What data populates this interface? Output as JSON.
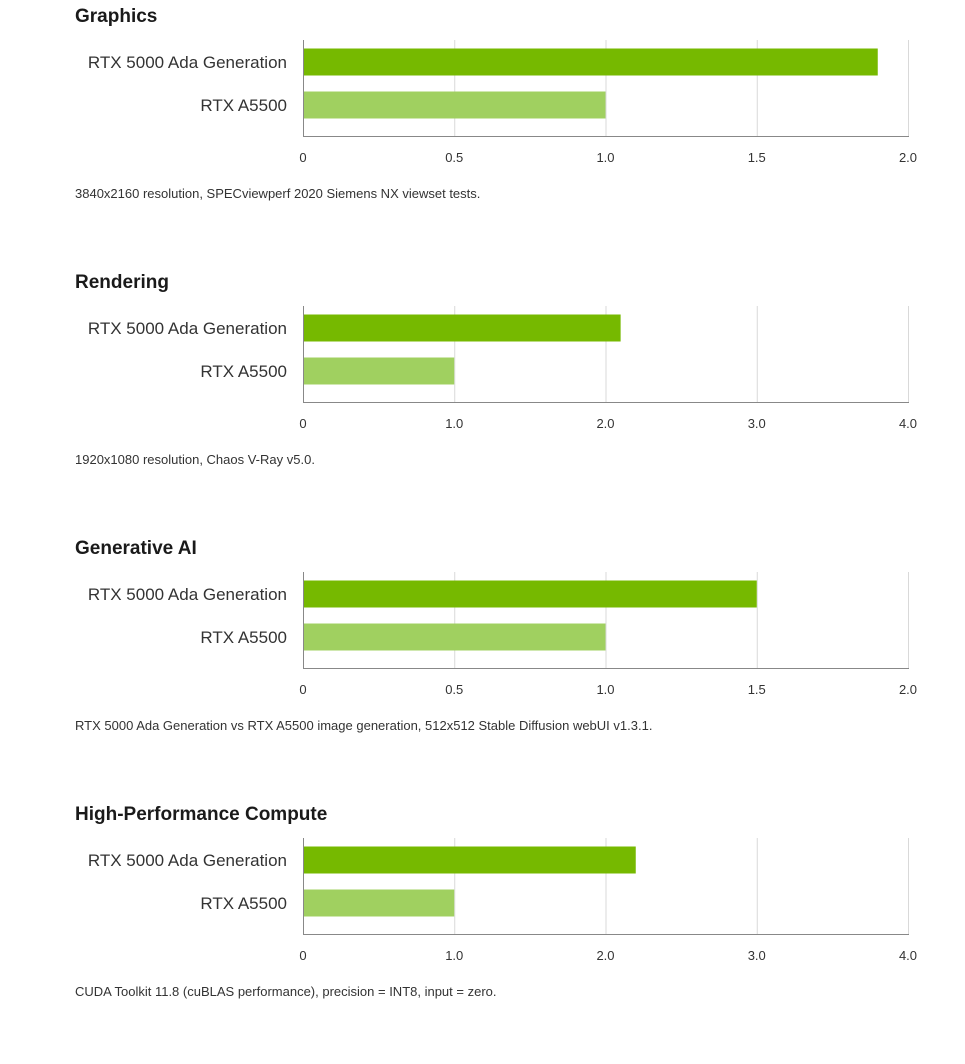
{
  "colors": {
    "primary_bar": "#76b900",
    "secondary_bar": "#a0d060",
    "grid": "#d9d9d9",
    "axis": "#888888",
    "text": "#333333"
  },
  "chart_data": [
    {
      "type": "bar",
      "orientation": "horizontal",
      "title": "Graphics",
      "categories": [
        "RTX 5000 Ada Generation",
        "RTX A5500"
      ],
      "values": [
        1.9,
        1.0
      ],
      "xlim": [
        0,
        2.0
      ],
      "ticks": [
        "0",
        "0.5",
        "1.0",
        "1.5",
        "2.0"
      ],
      "tick_values": [
        0,
        0.5,
        1.0,
        1.5,
        2.0
      ],
      "grid": true,
      "footnote": "3840x2160 resolution, SPECviewperf 2020 Siemens NX viewset tests."
    },
    {
      "type": "bar",
      "orientation": "horizontal",
      "title": "Rendering",
      "categories": [
        "RTX 5000 Ada Generation",
        "RTX A5500"
      ],
      "values": [
        2.1,
        1.0
      ],
      "xlim": [
        0,
        4.0
      ],
      "ticks": [
        "0",
        "1.0",
        "2.0",
        "3.0",
        "4.0"
      ],
      "tick_values": [
        0,
        1.0,
        2.0,
        3.0,
        4.0
      ],
      "grid": true,
      "footnote": "1920x1080 resolution, Chaos V-Ray v5.0."
    },
    {
      "type": "bar",
      "orientation": "horizontal",
      "title": "Generative AI",
      "categories": [
        "RTX 5000 Ada Generation",
        "RTX A5500"
      ],
      "values": [
        1.5,
        1.0
      ],
      "xlim": [
        0,
        2.0
      ],
      "ticks": [
        "0",
        "0.5",
        "1.0",
        "1.5",
        "2.0"
      ],
      "tick_values": [
        0,
        0.5,
        1.0,
        1.5,
        2.0
      ],
      "grid": true,
      "footnote": "RTX 5000 Ada Generation vs RTX A5500 image generation, 512x512 Stable Diffusion webUI v1.3.1."
    },
    {
      "type": "bar",
      "orientation": "horizontal",
      "title": "High-Performance Compute",
      "categories": [
        "RTX 5000 Ada Generation",
        "RTX A5500"
      ],
      "values": [
        2.2,
        1.0
      ],
      "xlim": [
        0,
        4.0
      ],
      "ticks": [
        "0",
        "1.0",
        "2.0",
        "3.0",
        "4.0"
      ],
      "tick_values": [
        0,
        1.0,
        2.0,
        3.0,
        4.0
      ],
      "grid": true,
      "footnote": "CUDA Toolkit 11.8 (cuBLAS performance), precision = INT8, input = zero."
    }
  ]
}
